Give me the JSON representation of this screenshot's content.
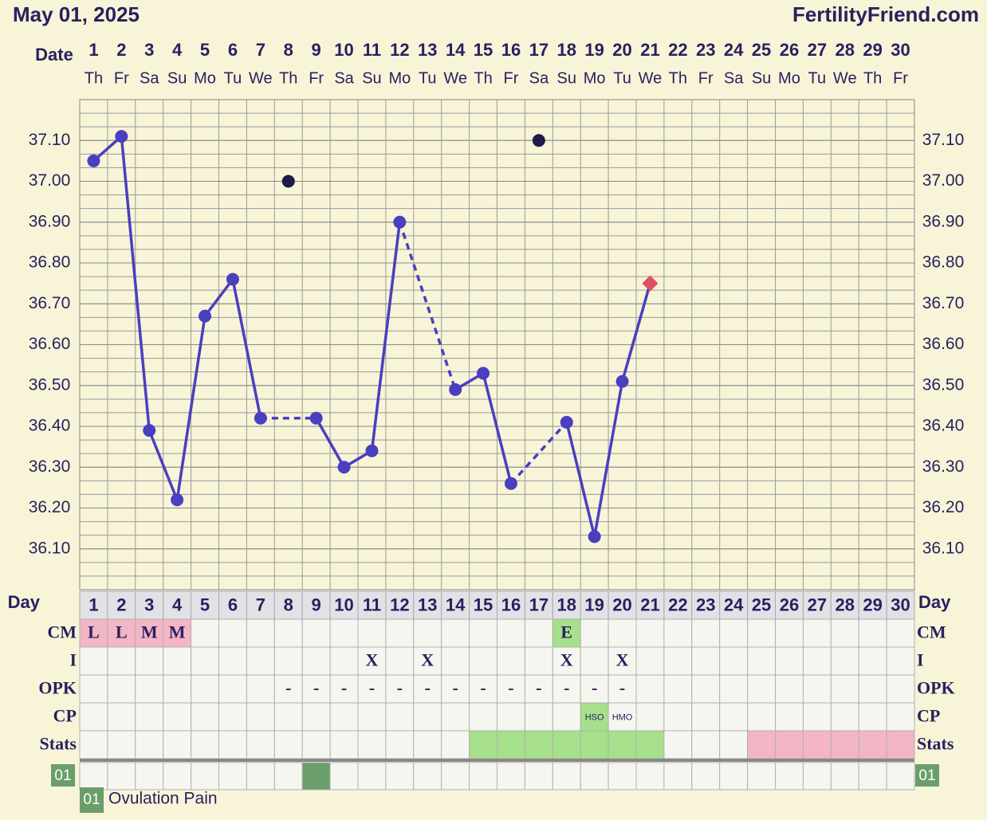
{
  "chart_data": {
    "type": "line",
    "title": "May 01, 2025",
    "brand": "FertilityFriend.com",
    "x_label": "Date",
    "days": [
      1,
      2,
      3,
      4,
      5,
      6,
      7,
      8,
      9,
      10,
      11,
      12,
      13,
      14,
      15,
      16,
      17,
      18,
      19,
      20,
      21,
      22,
      23,
      24,
      25,
      26,
      27,
      28,
      29,
      30
    ],
    "weekdays": [
      "Th",
      "Fr",
      "Sa",
      "Su",
      "Mo",
      "Tu",
      "We",
      "Th",
      "Fr",
      "Sa",
      "Su",
      "Mo",
      "Tu",
      "We",
      "Th",
      "Fr",
      "Sa",
      "Su",
      "Mo",
      "Tu",
      "We",
      "Th",
      "Fr",
      "Sa",
      "Su",
      "Mo",
      "Tu",
      "We",
      "Th",
      "Fr"
    ],
    "temperatures": [
      37.05,
      37.11,
      36.39,
      36.22,
      36.67,
      36.76,
      36.42,
      null,
      36.42,
      36.3,
      36.34,
      36.9,
      null,
      36.49,
      36.53,
      36.26,
      null,
      36.41,
      36.13,
      36.51,
      36.75,
      null,
      null,
      null,
      null,
      null,
      null,
      null,
      null,
      null
    ],
    "discarded": [
      null,
      null,
      null,
      null,
      null,
      null,
      null,
      37.0,
      null,
      null,
      null,
      null,
      null,
      null,
      null,
      null,
      37.1,
      null,
      null,
      null,
      null,
      null,
      null,
      null,
      null,
      null,
      null,
      null,
      null,
      null
    ],
    "line_color": "#4a3fbf",
    "discarded_color": "#1e1a4a",
    "last_marker_color": "#e0505e",
    "ylim": [
      36.0,
      37.2
    ],
    "yticks": [
      {
        "value": 36.1,
        "label": "36.10"
      },
      {
        "value": 36.2,
        "label": "36.20"
      },
      {
        "value": 36.3,
        "label": "36.30"
      },
      {
        "value": 36.4,
        "label": "36.40"
      },
      {
        "value": 36.5,
        "label": "36.50"
      },
      {
        "value": 36.6,
        "label": "36.60"
      },
      {
        "value": 36.7,
        "label": "36.70"
      },
      {
        "value": 36.8,
        "label": "36.80"
      },
      {
        "value": 36.9,
        "label": "36.90"
      },
      {
        "value": 37.0,
        "label": "37.00"
      },
      {
        "value": 37.1,
        "label": "37.10"
      }
    ],
    "day_row_label": "Day",
    "rows": [
      {
        "label": "CM",
        "cells": [
          "L",
          "L",
          "M",
          "M",
          null,
          null,
          null,
          null,
          null,
          null,
          null,
          null,
          null,
          null,
          null,
          null,
          null,
          "E",
          null,
          null,
          null,
          null,
          null,
          null,
          null,
          null,
          null,
          null,
          null,
          null
        ],
        "fills": [
          "#f2b6c6",
          "#f2b6c6",
          "#f2b6c6",
          "#f2b6c6",
          null,
          null,
          null,
          null,
          null,
          null,
          null,
          null,
          null,
          null,
          null,
          null,
          null,
          "#a6e08a",
          null,
          null,
          null,
          null,
          null,
          null,
          null,
          null,
          null,
          null,
          null,
          null
        ]
      },
      {
        "label": "I",
        "cells": [
          null,
          null,
          null,
          null,
          null,
          null,
          null,
          null,
          null,
          null,
          "X",
          null,
          "X",
          null,
          null,
          null,
          null,
          "X",
          null,
          "X",
          null,
          null,
          null,
          null,
          null,
          null,
          null,
          null,
          null,
          null
        ]
      },
      {
        "label": "OPK",
        "cells": [
          null,
          null,
          null,
          null,
          null,
          null,
          null,
          "-",
          "-",
          "-",
          "-",
          "-",
          "-",
          "-",
          "-",
          "-",
          "-",
          "-",
          "-",
          "-",
          null,
          null,
          null,
          null,
          null,
          null,
          null,
          null,
          null,
          null
        ]
      },
      {
        "label": "CP",
        "cells": [
          null,
          null,
          null,
          null,
          null,
          null,
          null,
          null,
          null,
          null,
          null,
          null,
          null,
          null,
          null,
          null,
          null,
          null,
          "HSO",
          "HMO",
          null,
          null,
          null,
          null,
          null,
          null,
          null,
          null,
          null,
          null
        ],
        "fills": [
          null,
          null,
          null,
          null,
          null,
          null,
          null,
          null,
          null,
          null,
          null,
          null,
          null,
          null,
          null,
          null,
          null,
          null,
          "#a6e08a",
          null,
          null,
          null,
          null,
          null,
          null,
          null,
          null,
          null,
          null,
          null
        ]
      },
      {
        "label": "Stats",
        "cells": [
          null,
          null,
          null,
          null,
          null,
          null,
          null,
          null,
          null,
          null,
          null,
          null,
          null,
          null,
          null,
          null,
          null,
          null,
          null,
          null,
          null,
          null,
          null,
          null,
          null,
          null,
          null,
          null,
          null,
          null
        ],
        "fills": [
          null,
          null,
          null,
          null,
          null,
          null,
          null,
          null,
          null,
          null,
          null,
          null,
          null,
          null,
          "#a6e08a",
          "#a6e08a",
          "#a6e08a",
          "#a6e08a",
          "#a6e08a",
          "#a6e08a",
          "#a6e08a",
          null,
          null,
          null,
          "#f2b6c6",
          "#f2b6c6",
          "#f2b6c6",
          "#f2b6c6",
          "#f2b6c6",
          "#f2b6c6"
        ]
      }
    ],
    "custom_row": {
      "label": "01",
      "color": "#6a9e6a",
      "marked": [
        false,
        false,
        false,
        false,
        false,
        false,
        false,
        false,
        true,
        false,
        false,
        false,
        false,
        false,
        false,
        false,
        false,
        false,
        false,
        false,
        false,
        false,
        false,
        false,
        false,
        false,
        false,
        false,
        false,
        false
      ]
    },
    "legend": {
      "code": "01",
      "text": "Ovulation Pain"
    }
  }
}
